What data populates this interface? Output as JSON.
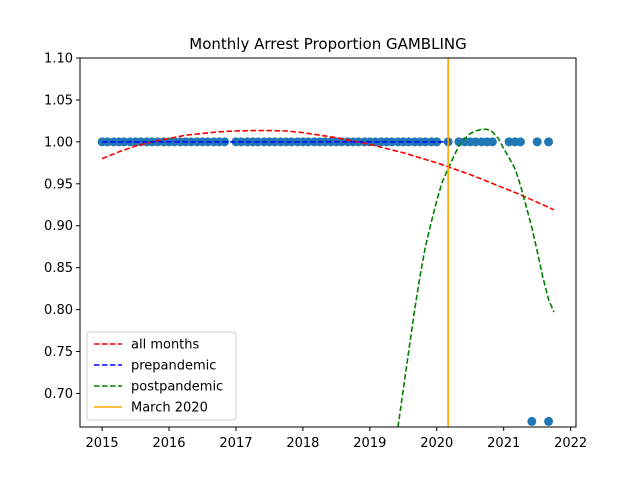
{
  "chart_data": {
    "type": "scatter",
    "title": "Monthly Arrest Proportion GAMBLING",
    "xlabel": "",
    "ylabel": "",
    "xlim": [
      2014.67,
      2022.08
    ],
    "ylim": [
      0.66,
      1.1
    ],
    "x_ticks": [
      2015,
      2016,
      2017,
      2018,
      2019,
      2020,
      2021,
      2022
    ],
    "x_tick_labels": [
      "2015",
      "2016",
      "2017",
      "2018",
      "2019",
      "2020",
      "2021",
      "2022"
    ],
    "y_ticks": [
      0.7,
      0.75,
      0.8,
      0.85,
      0.9,
      0.95,
      1.0,
      1.05,
      1.1
    ],
    "y_tick_labels": [
      "0.70",
      "0.75",
      "0.80",
      "0.85",
      "0.90",
      "0.95",
      "1.00",
      "1.05",
      "1.10"
    ],
    "grid": false,
    "legend_position": "lower-left",
    "scatter": {
      "color": "#1f77b4",
      "points": [
        [
          2015.0,
          1.0
        ],
        [
          2015.08,
          1.0
        ],
        [
          2015.17,
          1.0
        ],
        [
          2015.25,
          1.0
        ],
        [
          2015.33,
          1.0
        ],
        [
          2015.42,
          1.0
        ],
        [
          2015.5,
          1.0
        ],
        [
          2015.58,
          1.0
        ],
        [
          2015.67,
          1.0
        ],
        [
          2015.75,
          1.0
        ],
        [
          2015.83,
          1.0
        ],
        [
          2015.92,
          1.0
        ],
        [
          2016.0,
          1.0
        ],
        [
          2016.08,
          1.0
        ],
        [
          2016.17,
          1.0
        ],
        [
          2016.25,
          1.0
        ],
        [
          2016.33,
          1.0
        ],
        [
          2016.42,
          1.0
        ],
        [
          2016.5,
          1.0
        ],
        [
          2016.58,
          1.0
        ],
        [
          2016.67,
          1.0
        ],
        [
          2016.75,
          1.0
        ],
        [
          2016.83,
          1.0
        ],
        [
          2017.0,
          1.0
        ],
        [
          2017.08,
          1.0
        ],
        [
          2017.17,
          1.0
        ],
        [
          2017.25,
          1.0
        ],
        [
          2017.33,
          1.0
        ],
        [
          2017.42,
          1.0
        ],
        [
          2017.5,
          1.0
        ],
        [
          2017.58,
          1.0
        ],
        [
          2017.67,
          1.0
        ],
        [
          2017.75,
          1.0
        ],
        [
          2017.83,
          1.0
        ],
        [
          2017.92,
          1.0
        ],
        [
          2018.0,
          1.0
        ],
        [
          2018.08,
          1.0
        ],
        [
          2018.17,
          1.0
        ],
        [
          2018.25,
          1.0
        ],
        [
          2018.33,
          1.0
        ],
        [
          2018.42,
          1.0
        ],
        [
          2018.5,
          1.0
        ],
        [
          2018.58,
          1.0
        ],
        [
          2018.67,
          1.0
        ],
        [
          2018.75,
          1.0
        ],
        [
          2018.83,
          1.0
        ],
        [
          2018.92,
          1.0
        ],
        [
          2019.0,
          1.0
        ],
        [
          2019.08,
          1.0
        ],
        [
          2019.17,
          1.0
        ],
        [
          2019.25,
          1.0
        ],
        [
          2019.33,
          1.0
        ],
        [
          2019.42,
          1.0
        ],
        [
          2019.5,
          1.0
        ],
        [
          2019.58,
          1.0
        ],
        [
          2019.67,
          1.0
        ],
        [
          2019.75,
          1.0
        ],
        [
          2019.83,
          1.0
        ],
        [
          2019.92,
          1.0
        ],
        [
          2020.0,
          1.0
        ],
        [
          2020.17,
          1.0
        ],
        [
          2020.33,
          1.0
        ],
        [
          2020.42,
          1.0
        ],
        [
          2020.5,
          1.0
        ],
        [
          2020.58,
          1.0
        ],
        [
          2020.67,
          1.0
        ],
        [
          2020.75,
          1.0
        ],
        [
          2020.83,
          1.0
        ],
        [
          2021.08,
          1.0
        ],
        [
          2021.17,
          1.0
        ],
        [
          2021.25,
          1.0
        ],
        [
          2021.42,
          0.6667
        ],
        [
          2021.5,
          1.0
        ],
        [
          2021.67,
          1.0
        ],
        [
          2021.67,
          0.6667
        ]
      ]
    },
    "series": [
      {
        "name": "all months",
        "style": "dashed",
        "color": "#ff0000",
        "x": [
          2015.0,
          2015.25,
          2015.5,
          2015.75,
          2016.0,
          2016.25,
          2016.5,
          2016.75,
          2017.0,
          2017.25,
          2017.5,
          2017.75,
          2018.0,
          2018.25,
          2018.5,
          2018.75,
          2019.0,
          2019.25,
          2019.5,
          2019.75,
          2020.0,
          2020.25,
          2020.5,
          2020.75,
          2021.0,
          2021.25,
          2021.5,
          2021.75
        ],
        "y": [
          0.98,
          0.988,
          0.995,
          1.0,
          1.004,
          1.008,
          1.01,
          1.012,
          1.013,
          1.0135,
          1.0135,
          1.013,
          1.011,
          1.008,
          1.005,
          1.001,
          0.997,
          0.992,
          0.987,
          0.981,
          0.975,
          0.968,
          0.961,
          0.953,
          0.945,
          0.937,
          0.928,
          0.919
        ]
      },
      {
        "name": "prepandemic",
        "style": "dashed",
        "color": "#0000ff",
        "x": [
          2015.0,
          2020.17
        ],
        "y": [
          1.0,
          1.0
        ]
      },
      {
        "name": "postpandemic",
        "style": "dashed",
        "color": "#008000",
        "x": [
          2019.42,
          2019.5,
          2019.58,
          2019.67,
          2019.75,
          2019.83,
          2019.92,
          2020.0,
          2020.08,
          2020.17,
          2020.25,
          2020.33,
          2020.42,
          2020.5,
          2020.58,
          2020.67,
          2020.75,
          2020.83,
          2020.92,
          2021.0,
          2021.08,
          2021.17,
          2021.25,
          2021.33,
          2021.42,
          2021.5,
          2021.58,
          2021.67,
          2021.75
        ],
        "y": [
          0.66,
          0.705,
          0.75,
          0.8,
          0.84,
          0.875,
          0.905,
          0.93,
          0.952,
          0.968,
          0.982,
          0.995,
          1.004,
          1.01,
          1.013,
          1.015,
          1.015,
          1.012,
          1.004,
          0.992,
          0.981,
          0.968,
          0.948,
          0.925,
          0.898,
          0.87,
          0.84,
          0.812,
          0.797
        ]
      },
      {
        "name": "March 2020",
        "style": "solid",
        "color": "#ffa500",
        "vline_x": 2020.17
      }
    ]
  }
}
